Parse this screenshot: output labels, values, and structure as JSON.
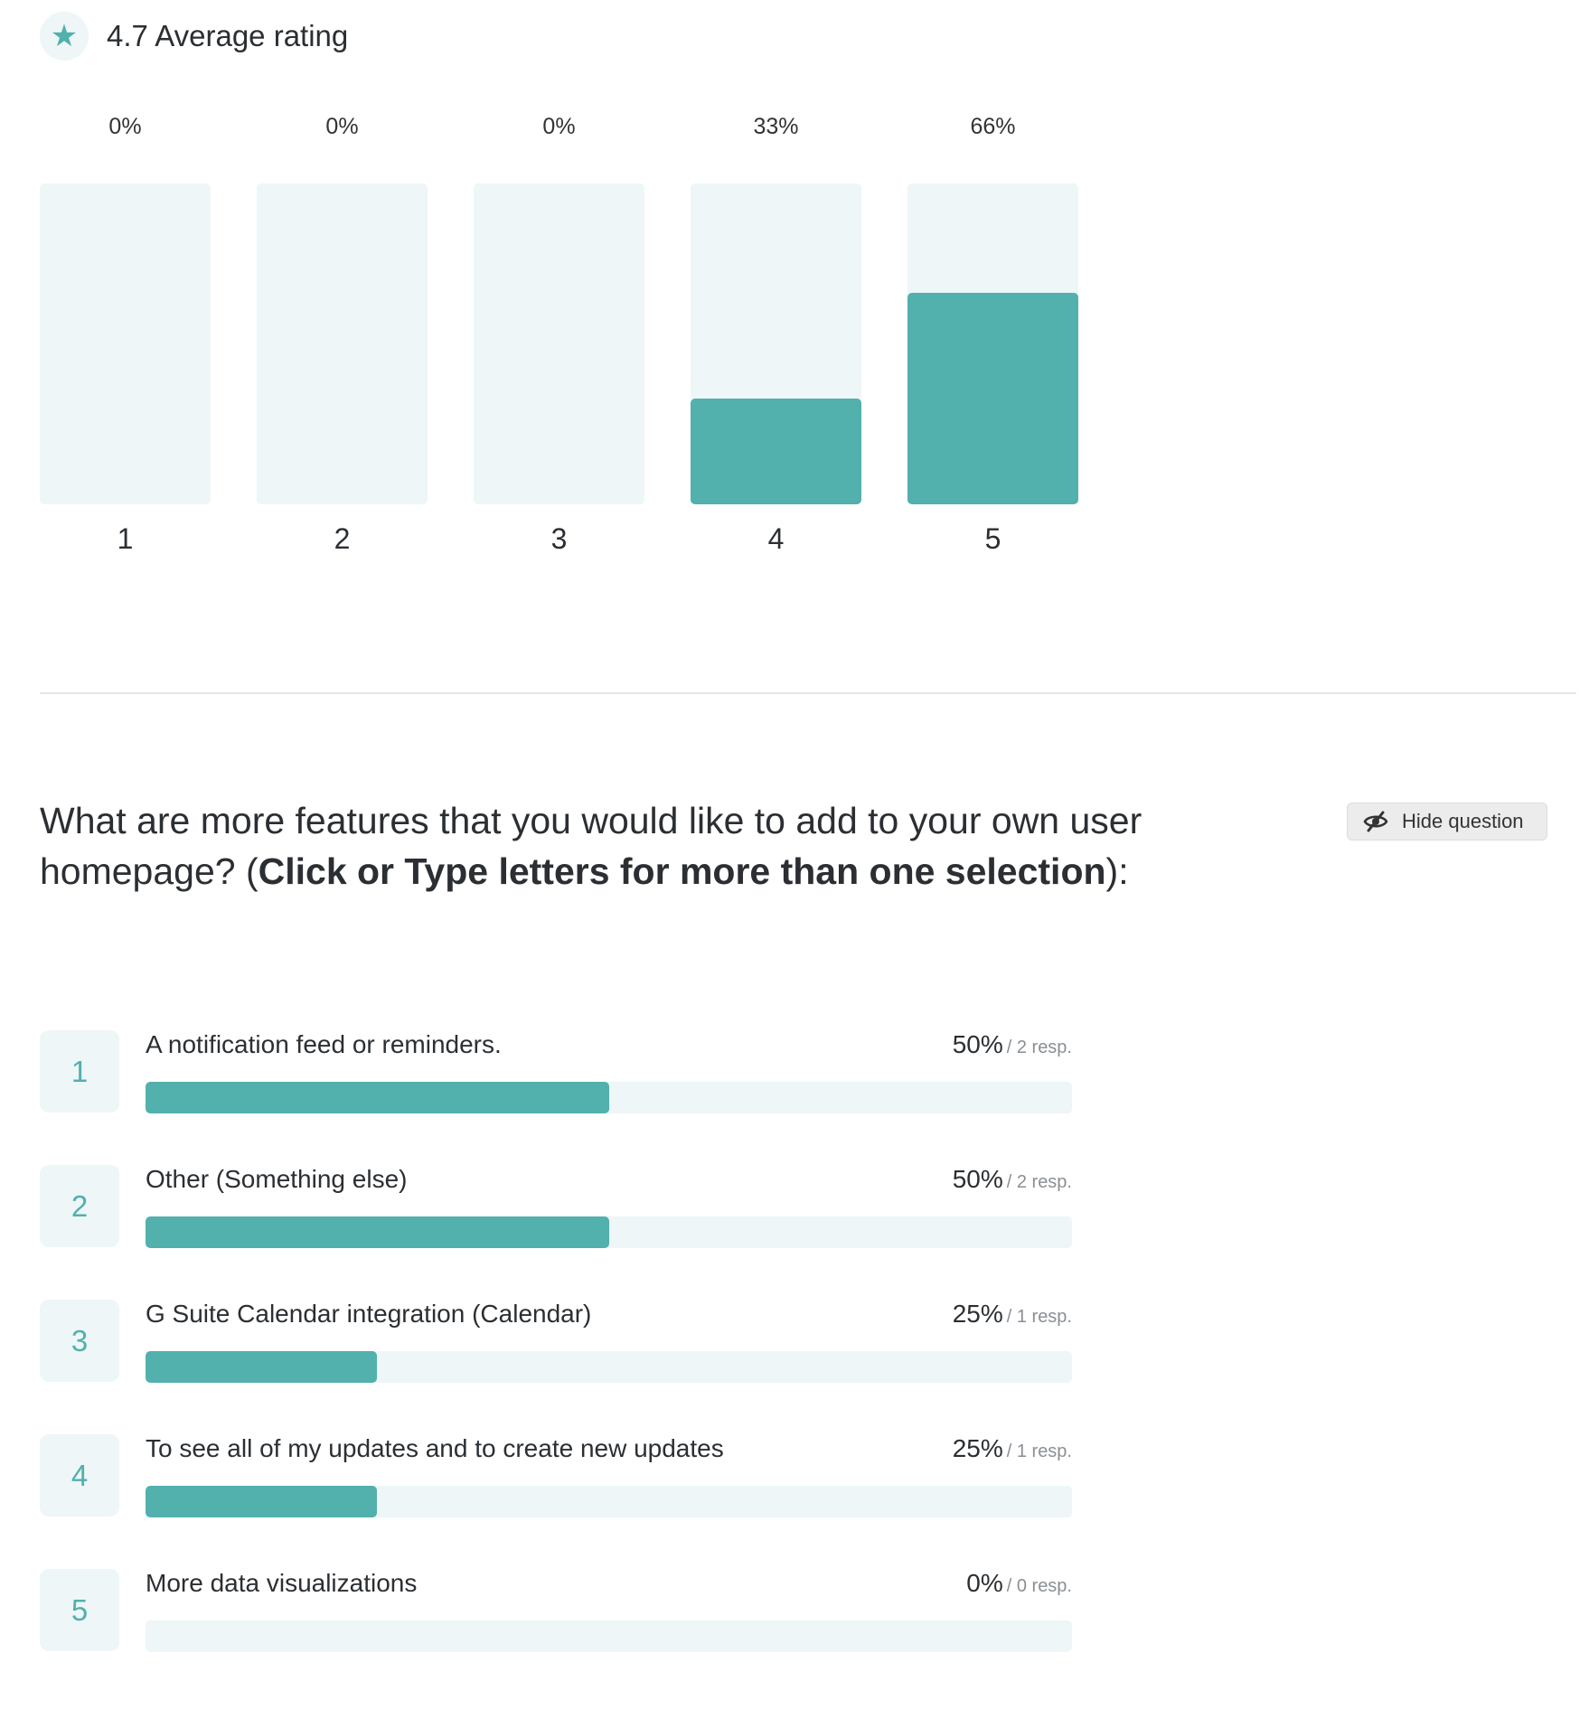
{
  "rating": {
    "average_label": "4.7 Average rating",
    "icon": "star-icon",
    "accent_color": "#52b0ad",
    "track_color": "#eef6f7"
  },
  "chart_data": {
    "type": "bar",
    "categories": [
      "1",
      "2",
      "3",
      "4",
      "5"
    ],
    "values": [
      0,
      0,
      0,
      33,
      66
    ],
    "value_labels": [
      "0%",
      "0%",
      "0%",
      "33%",
      "66%"
    ],
    "ylim": [
      0,
      100
    ]
  },
  "question": {
    "text_prefix": "What are more features that you would like to add to your own user homepage? (",
    "text_bold": "Click or Type letters for more than one selection",
    "text_suffix": "):",
    "hide_button_label": "Hide question",
    "hide_icon": "eye-slash-icon"
  },
  "options": [
    {
      "number": "1",
      "label": "A notification feed or reminders.",
      "percent_label": "50%",
      "responses_label": "/ 2 resp.",
      "fraction": 0.5
    },
    {
      "number": "2",
      "label": "Other (Something else)",
      "percent_label": "50%",
      "responses_label": "/ 2 resp.",
      "fraction": 0.5
    },
    {
      "number": "3",
      "label": "G Suite Calendar integration (Calendar)",
      "percent_label": "25%",
      "responses_label": "/ 1 resp.",
      "fraction": 0.25
    },
    {
      "number": "4",
      "label": "To see all of my updates and to create new updates",
      "percent_label": "25%",
      "responses_label": "/ 1 resp.",
      "fraction": 0.25
    },
    {
      "number": "5",
      "label": "More data visualizations",
      "percent_label": "0%",
      "responses_label": "/ 0 resp.",
      "fraction": 0
    }
  ]
}
